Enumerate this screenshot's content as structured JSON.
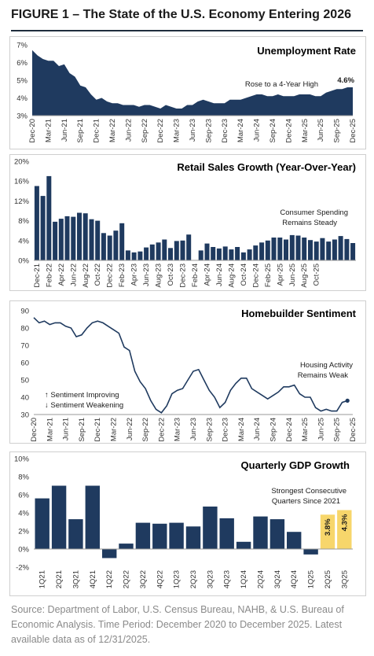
{
  "figure_title": "FIGURE 1 – The State of the U.S. Economy Entering 2026",
  "source_note": "Source: Department of Labor, U.S. Census Bureau, NAHB, & U.S. Bureau of Economic Analysis. Time Period: December 2020 to December 2025. Latest available data as of 12/31/2025.",
  "colors": {
    "navy": "#1f3a5f",
    "highlight": "#f7d66b",
    "axis": "#999999"
  },
  "chart_data": [
    {
      "type": "area",
      "title": "Unemployment Rate",
      "ylim": [
        3,
        7
      ],
      "yticks": [
        "7%",
        "6%",
        "5%",
        "4%",
        "3%"
      ],
      "tick_labels": [
        "Dec-20",
        "Mar-21",
        "Jun-21",
        "Sep-21",
        "Dec-21",
        "Mar-22",
        "Jun-22",
        "Sep-22",
        "Dec-22",
        "Mar-23",
        "Jun-23",
        "Sep-23",
        "Dec-23",
        "Mar-24",
        "Jun-24",
        "Sep-24",
        "Dec-24",
        "Mar-25",
        "Jun-25",
        "Sep-25",
        "Dec-25"
      ],
      "x_range": [
        0,
        60
      ],
      "annotation": "Rose to a 4-Year High",
      "last_label": "4.6%",
      "points": [
        [
          0,
          6.7
        ],
        [
          1,
          6.4
        ],
        [
          2,
          6.2
        ],
        [
          3,
          6.1
        ],
        [
          4,
          6.1
        ],
        [
          5,
          5.8
        ],
        [
          6,
          5.9
        ],
        [
          7,
          5.4
        ],
        [
          8,
          5.2
        ],
        [
          9,
          4.7
        ],
        [
          10,
          4.6
        ],
        [
          11,
          4.2
        ],
        [
          12,
          3.9
        ],
        [
          13,
          4.0
        ],
        [
          14,
          3.8
        ],
        [
          15,
          3.7
        ],
        [
          16,
          3.7
        ],
        [
          17,
          3.6
        ],
        [
          18,
          3.6
        ],
        [
          19,
          3.6
        ],
        [
          20,
          3.5
        ],
        [
          21,
          3.6
        ],
        [
          22,
          3.6
        ],
        [
          23,
          3.5
        ],
        [
          24,
          3.4
        ],
        [
          25,
          3.6
        ],
        [
          26,
          3.5
        ],
        [
          27,
          3.4
        ],
        [
          28,
          3.4
        ],
        [
          29,
          3.6
        ],
        [
          30,
          3.6
        ],
        [
          31,
          3.8
        ],
        [
          32,
          3.9
        ],
        [
          33,
          3.8
        ],
        [
          34,
          3.7
        ],
        [
          35,
          3.7
        ],
        [
          36,
          3.7
        ],
        [
          37,
          3.9
        ],
        [
          38,
          3.9
        ],
        [
          39,
          3.9
        ],
        [
          40,
          4.0
        ],
        [
          41,
          4.1
        ],
        [
          42,
          4.2
        ],
        [
          43,
          4.2
        ],
        [
          44,
          4.1
        ],
        [
          45,
          4.1
        ],
        [
          46,
          4.2
        ],
        [
          47,
          4.1
        ],
        [
          48,
          4.1
        ],
        [
          49,
          4.1
        ],
        [
          50,
          4.2
        ],
        [
          51,
          4.2
        ],
        [
          52,
          4.2
        ],
        [
          53,
          4.1
        ],
        [
          54,
          4.1
        ],
        [
          55,
          4.3
        ],
        [
          56,
          4.4
        ],
        [
          57,
          4.5
        ],
        [
          58,
          4.5
        ],
        [
          59,
          4.6
        ],
        [
          60,
          4.6
        ]
      ]
    },
    {
      "type": "bar",
      "title": "Retail Sales Growth (Year-Over-Year)",
      "ylim": [
        0,
        20
      ],
      "yticks": [
        "20%",
        "16%",
        "12%",
        "8%",
        "4%",
        "0%"
      ],
      "tick_labels": [
        "Dec-21",
        "Feb-22",
        "Apr-22",
        "Jun-22",
        "Aug-22",
        "Oct-22",
        "Dec-22",
        "Feb-23",
        "Apr-23",
        "Jun-23",
        "Aug-23",
        "Oct-23",
        "Dec-23",
        "Feb-24",
        "Apr-24",
        "Jun-24",
        "Aug-24",
        "Oct-24",
        "Dec-24",
        "Feb-25",
        "Apr-25",
        "Jun-25",
        "Aug-25",
        "Oct-25"
      ],
      "annotation": [
        "Consumer Spending",
        "Remains Steady"
      ],
      "values": [
        15.0,
        13.0,
        17.0,
        7.8,
        8.4,
        8.9,
        8.8,
        9.6,
        9.5,
        8.3,
        8.0,
        5.5,
        5.0,
        6.0,
        7.5,
        2.0,
        1.6,
        1.8,
        2.6,
        3.2,
        3.6,
        4.2,
        2.5,
        3.9,
        4.0,
        5.2,
        null,
        2.0,
        3.4,
        2.7,
        2.4,
        2.8,
        2.2,
        2.7,
        1.6,
        2.2,
        3.0,
        3.6,
        4.0,
        4.6,
        4.6,
        4.2,
        5.1,
        5.0,
        4.6,
        4.1,
        3.8,
        4.5,
        3.8,
        4.2,
        4.9,
        4.3,
        3.5
      ]
    },
    {
      "type": "line",
      "title": "Homebuilder Sentiment",
      "ylim": [
        30,
        90
      ],
      "yticks": [
        "90",
        "80",
        "70",
        "60",
        "50",
        "40",
        "30"
      ],
      "tick_labels": [
        "Dec-20",
        "Mar-21",
        "Jun-21",
        "Sep-21",
        "Dec-21",
        "Mar-22",
        "Jun-22",
        "Sep-22",
        "Dec-22",
        "Mar-23",
        "Jun-23",
        "Sep-23",
        "Dec-23",
        "Mar-24",
        "Jun-24",
        "Sep-24",
        "Dec-24",
        "Mar-25",
        "Jun-25",
        "Sep-25",
        "Dec-25"
      ],
      "x_range": [
        0,
        60
      ],
      "annotation": [
        "Housing Activity",
        "Remains Weak"
      ],
      "legend": [
        "↑ Sentiment Improving",
        "↓ Sentiment Weakening"
      ],
      "points": [
        [
          0,
          86
        ],
        [
          1,
          83
        ],
        [
          2,
          84
        ],
        [
          3,
          82
        ],
        [
          4,
          83
        ],
        [
          5,
          83
        ],
        [
          6,
          81
        ],
        [
          7,
          80
        ],
        [
          8,
          75
        ],
        [
          9,
          76
        ],
        [
          10,
          80
        ],
        [
          11,
          83
        ],
        [
          12,
          84
        ],
        [
          13,
          83
        ],
        [
          14,
          81
        ],
        [
          15,
          79
        ],
        [
          16,
          77
        ],
        [
          17,
          69
        ],
        [
          18,
          67
        ],
        [
          19,
          55
        ],
        [
          20,
          49
        ],
        [
          21,
          45
        ],
        [
          22,
          38
        ],
        [
          23,
          33
        ],
        [
          24,
          31
        ],
        [
          25,
          35
        ],
        [
          26,
          42
        ],
        [
          27,
          44
        ],
        [
          28,
          45
        ],
        [
          29,
          50
        ],
        [
          30,
          55
        ],
        [
          31,
          56
        ],
        [
          32,
          50
        ],
        [
          33,
          44
        ],
        [
          34,
          40
        ],
        [
          35,
          34
        ],
        [
          36,
          37
        ],
        [
          37,
          44
        ],
        [
          38,
          48
        ],
        [
          39,
          51
        ],
        [
          40,
          51
        ],
        [
          41,
          45
        ],
        [
          42,
          43
        ],
        [
          43,
          41
        ],
        [
          44,
          39
        ],
        [
          45,
          41
        ],
        [
          46,
          43
        ],
        [
          47,
          46
        ],
        [
          48,
          46
        ],
        [
          49,
          47
        ],
        [
          50,
          42
        ],
        [
          51,
          40
        ],
        [
          52,
          40
        ],
        [
          53,
          34
        ],
        [
          54,
          32
        ],
        [
          55,
          33
        ],
        [
          56,
          32
        ],
        [
          57,
          32
        ],
        [
          58,
          37
        ],
        [
          59,
          38
        ]
      ]
    },
    {
      "type": "bar",
      "title": "Quarterly GDP Growth",
      "ylim": [
        -2,
        10
      ],
      "yticks": [
        "10%",
        "8%",
        "6%",
        "4%",
        "2%",
        "0%",
        "-2%"
      ],
      "categories": [
        "1Q21",
        "2Q21",
        "3Q21",
        "4Q21",
        "1Q22",
        "2Q22",
        "3Q22",
        "4Q22",
        "1Q23",
        "2Q23",
        "3Q23",
        "4Q23",
        "1Q24",
        "2Q24",
        "3Q24",
        "4Q24",
        "1Q25",
        "2Q25",
        "3Q25"
      ],
      "values": [
        5.6,
        7.0,
        3.3,
        7.0,
        -1.0,
        0.6,
        2.9,
        2.8,
        2.9,
        2.5,
        4.7,
        3.4,
        0.8,
        3.6,
        3.3,
        1.9,
        -0.6,
        3.8,
        4.3
      ],
      "data_labels": [
        null,
        null,
        null,
        null,
        null,
        null,
        null,
        null,
        null,
        null,
        null,
        null,
        null,
        null,
        null,
        null,
        null,
        "3.8%",
        "4.3%"
      ],
      "highlight": [
        false,
        false,
        false,
        false,
        false,
        false,
        false,
        false,
        false,
        false,
        false,
        false,
        false,
        false,
        false,
        false,
        false,
        true,
        true
      ],
      "annotation": [
        "Strongest Consecutive",
        "Quarters Since 2021"
      ]
    }
  ]
}
